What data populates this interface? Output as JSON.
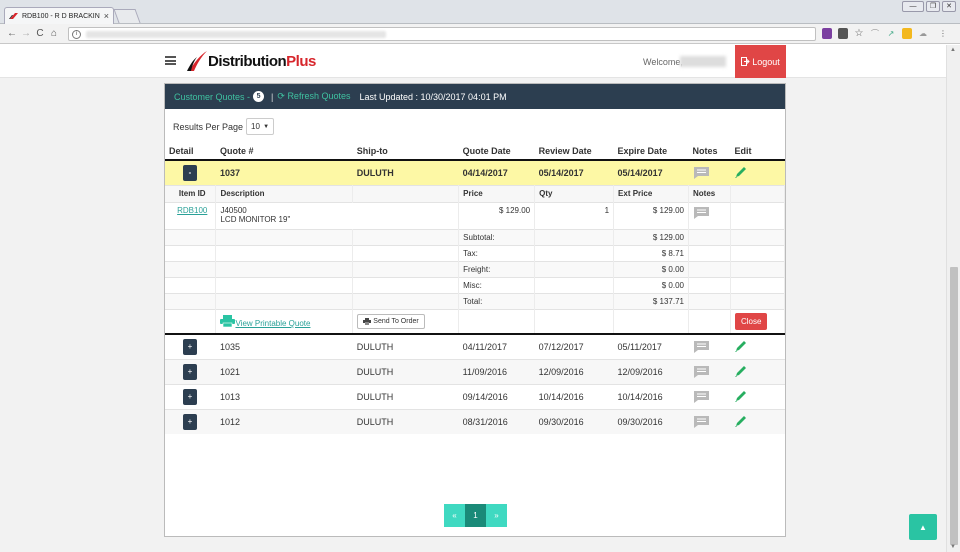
{
  "browser": {
    "tab_title": "RDB100 - R D BRACKIN",
    "tab_close": "×",
    "win_minimize": "—",
    "win_restore": "❐",
    "win_close": "✕",
    "nav_back": "←",
    "nav_forward": "→",
    "nav_reload": "C",
    "nav_home": "⌂",
    "info": "i"
  },
  "header": {
    "brand_part1": "Distribution",
    "brand_part2": "Plus",
    "welcome": "Welcome,",
    "logout": "Logout"
  },
  "panel": {
    "title": "Customer Quotes -",
    "count": "5",
    "separator": "|",
    "refresh": "Refresh Quotes",
    "last_updated": "Last Updated : 10/30/2017 04:01 PM",
    "results_per_page_label": "Results Per Page",
    "results_per_page_value": "10"
  },
  "columns": [
    "Detail",
    "Quote #",
    "Ship-to",
    "Quote Date",
    "Review Date",
    "Expire Date",
    "Notes",
    "Edit"
  ],
  "open_quote": {
    "toggle": "-",
    "quote": "1037",
    "ship_to": "DULUTH",
    "quote_date": "04/14/2017",
    "review_date": "05/14/2017",
    "expire_date": "05/14/2017"
  },
  "detail": {
    "columns": [
      "Item ID",
      "Description",
      "Price",
      "Qty",
      "Ext Price",
      "Notes"
    ],
    "item": {
      "id": "RDB100",
      "desc1": "J40500",
      "desc2": "LCD MONITOR 19\"",
      "price": "$ 129.00",
      "qty": "1",
      "ext": "$ 129.00"
    },
    "totals": [
      {
        "label": "Subtotal:",
        "value": "$ 129.00"
      },
      {
        "label": "Tax:",
        "value": "$ 8.71"
      },
      {
        "label": "Freight:",
        "value": "$ 0.00"
      },
      {
        "label": "Misc:",
        "value": "$ 0.00"
      },
      {
        "label": "Total:",
        "value": "$ 137.71"
      }
    ],
    "printable": "View Printable Quote",
    "send_to_order": "Send To Order",
    "close": "Close"
  },
  "quotes": [
    {
      "toggle": "+",
      "quote": "1035",
      "ship_to": "DULUTH",
      "quote_date": "04/11/2017",
      "review_date": "07/12/2017",
      "expire_date": "05/11/2017"
    },
    {
      "toggle": "+",
      "quote": "1021",
      "ship_to": "DULUTH",
      "quote_date": "11/09/2016",
      "review_date": "12/09/2016",
      "expire_date": "12/09/2016"
    },
    {
      "toggle": "+",
      "quote": "1013",
      "ship_to": "DULUTH",
      "quote_date": "09/14/2016",
      "review_date": "10/14/2016",
      "expire_date": "10/14/2016"
    },
    {
      "toggle": "+",
      "quote": "1012",
      "ship_to": "DULUTH",
      "quote_date": "08/31/2016",
      "review_date": "09/30/2016",
      "expire_date": "09/30/2016"
    }
  ],
  "pager": {
    "prev": "«",
    "page": "1",
    "next": "»"
  },
  "back_to_top": "▲",
  "colors": {
    "navy": "#2c3e50",
    "teal": "#3fc1a0",
    "red": "#e04646",
    "highlight": "#fdf8a5"
  },
  "icons": [
    "search-icon",
    "notes-icon",
    "pencil-icon",
    "printer-icon",
    "refresh-icon",
    "logout-icon",
    "chevron-up-icon"
  ]
}
